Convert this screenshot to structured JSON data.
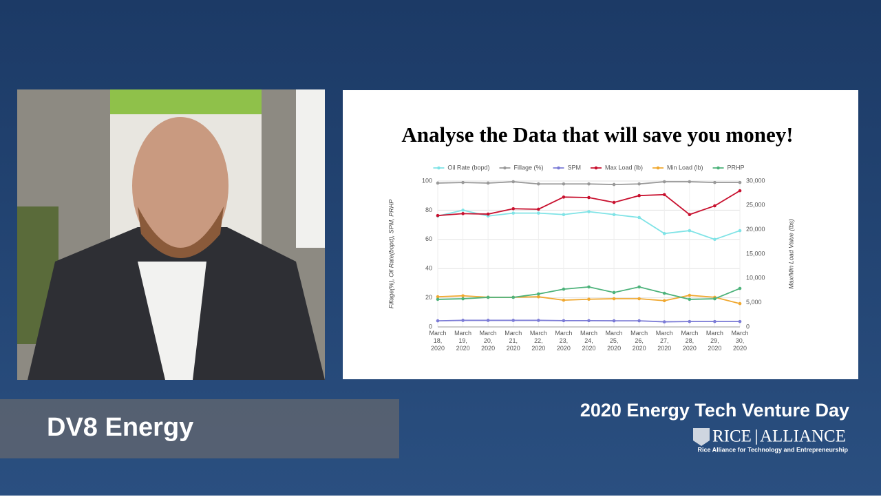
{
  "banner": {
    "presenter": "DV8 Energy",
    "event": "2020 Energy Tech Venture Day",
    "logo_left": "RICE",
    "logo_right": "ALLIANCE",
    "tagline": "Rice Alliance for Technology and Entrepreneurship"
  },
  "chart_data": {
    "type": "line",
    "title": "Analyse the Data that will save you money!",
    "y_label": "Fillage(%), Oil Rate(bopd), SPM, PRHP",
    "y2_label": "Max/Min Load Value (lbs)",
    "categories": [
      "March 18, 2020",
      "March 19, 2020",
      "March 20, 2020",
      "March 21, 2020",
      "March 22, 2020",
      "March 23, 2020",
      "March 24, 2020",
      "March 25, 2020",
      "March 26, 2020",
      "March 27, 2020",
      "March 28, 2020",
      "March 29, 2020",
      "March 30, 2020"
    ],
    "ylim": [
      0,
      100
    ],
    "yticks": [
      0,
      20,
      40,
      60,
      80,
      100
    ],
    "y2lim": [
      0,
      30000
    ],
    "y2ticks": [
      0,
      {
        "value": 5000,
        "label": "5,000"
      },
      {
        "value": 10000,
        "label": "10,000"
      },
      {
        "value": 15000,
        "label": "15,000"
      },
      {
        "value": 20000,
        "label": "20,000"
      },
      {
        "value": 25000,
        "label": "25,000"
      },
      {
        "value": 30000,
        "label": "30,000"
      }
    ],
    "grid": true,
    "legend": "top",
    "series": [
      {
        "name": "Oil Rate (bopd)",
        "color": "#7fe3e6",
        "values": [
          76,
          80,
          76,
          78,
          78,
          77,
          79,
          77,
          75,
          64,
          66,
          60,
          66
        ]
      },
      {
        "name": "Fillage (%)",
        "color": "#999999",
        "values": [
          98.6,
          99,
          98.6,
          99.5,
          98,
          98,
          98,
          97.6,
          98,
          99.5,
          99.5,
          99,
          99
        ]
      },
      {
        "name": "SPM",
        "color": "#7b7bd6",
        "values": [
          4.2,
          4.5,
          4.5,
          4.5,
          4.5,
          4.3,
          4.3,
          4.2,
          4.2,
          3.5,
          3.7,
          3.7,
          3.7
        ]
      },
      {
        "name": "Max Load (lb)",
        "color": "#c8102e",
        "axis": "y2",
        "values": [
          22900,
          23300,
          23200,
          24300,
          24200,
          26700,
          26600,
          25600,
          27000,
          27200,
          23100,
          24900,
          28000
        ]
      },
      {
        "name": "Min Load (lb)",
        "color": "#f0a830",
        "axis": "y2",
        "values": [
          6200,
          6400,
          6100,
          6100,
          6200,
          5500,
          5700,
          5800,
          5800,
          5400,
          6500,
          6100,
          4800
        ]
      },
      {
        "name": "PRHP",
        "color": "#4cb27a",
        "values": [
          18.9,
          19.3,
          20.3,
          20.3,
          22.6,
          25.9,
          27.4,
          23.6,
          27.4,
          23.1,
          18.9,
          19.3,
          26.4
        ]
      }
    ]
  }
}
